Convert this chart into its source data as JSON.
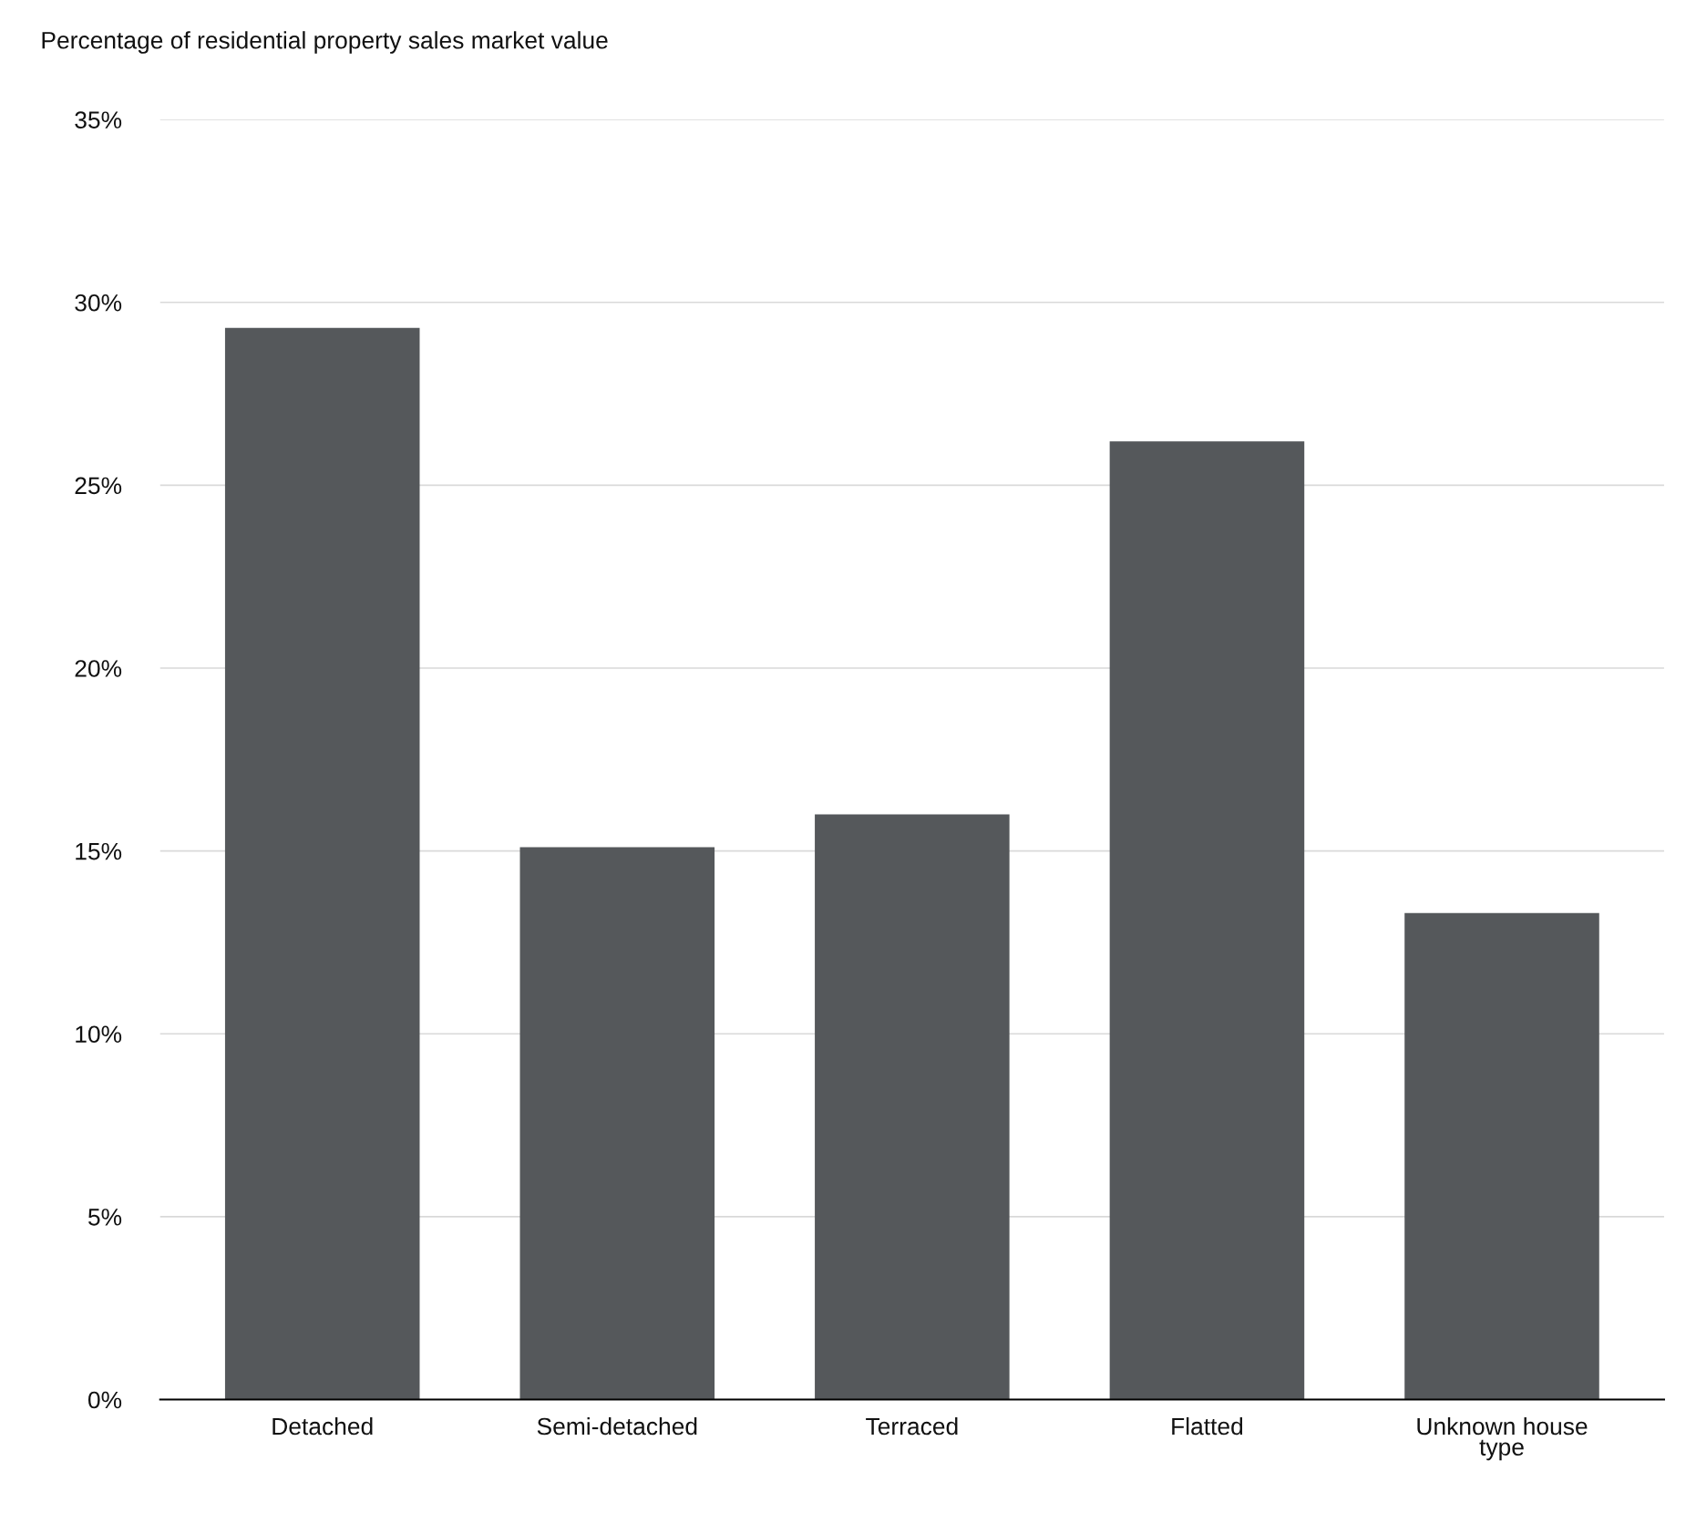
{
  "chart_data": {
    "type": "bar",
    "ylabel": "Percentage of residential property sales market value",
    "categories": [
      "Detached",
      "Semi-detached",
      "Terraced",
      "Flatted",
      "Unknown house\ntype"
    ],
    "values": [
      29.3,
      15.1,
      16.0,
      26.2,
      13.3
    ],
    "color": "#55585b",
    "ylim": [
      0,
      35
    ],
    "yticks": [
      {
        "value": 0,
        "label": "0%"
      },
      {
        "value": 5,
        "label": "5%"
      },
      {
        "value": 10,
        "label": "10%"
      },
      {
        "value": 15,
        "label": "15%"
      },
      {
        "value": 20,
        "label": "20%"
      },
      {
        "value": 25,
        "label": "25%"
      },
      {
        "value": 30,
        "label": "30%"
      },
      {
        "value": 35,
        "label": "35%"
      }
    ],
    "grid": "y",
    "legend": false
  }
}
